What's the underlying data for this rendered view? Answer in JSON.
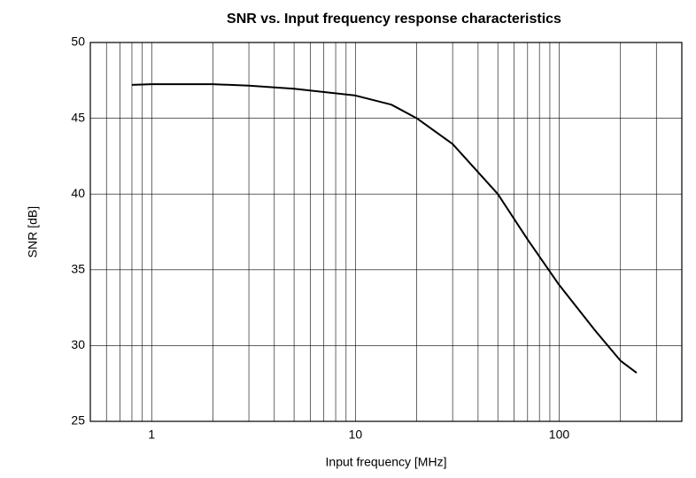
{
  "chart_data": {
    "type": "line",
    "title": "SNR vs. Input frequency response characteristics",
    "x_label": "Input frequency [MHz]",
    "y_label": "SNR [dB]",
    "x_log": true,
    "grid": true,
    "xlim": [
      0.5,
      400
    ],
    "ylim": [
      25,
      50
    ],
    "xticks": [
      1,
      10,
      100
    ],
    "yticks": [
      25,
      30,
      35,
      40,
      45,
      50
    ],
    "xminor": [
      0.6,
      0.7,
      0.8,
      0.9,
      2,
      3,
      4,
      5,
      6,
      7,
      8,
      9,
      20,
      30,
      40,
      50,
      60,
      70,
      80,
      90,
      200,
      300
    ],
    "series": [
      {
        "color": "#000000",
        "x": [
          0.8,
          1,
          2,
          3,
          5,
          10,
          15,
          20,
          30,
          50,
          70,
          100,
          150,
          200,
          240
        ],
        "values": [
          47.2,
          47.25,
          47.25,
          47.15,
          46.95,
          46.5,
          45.9,
          45.0,
          43.3,
          40.0,
          37.0,
          34.0,
          31.0,
          29.0,
          28.2
        ]
      }
    ]
  }
}
